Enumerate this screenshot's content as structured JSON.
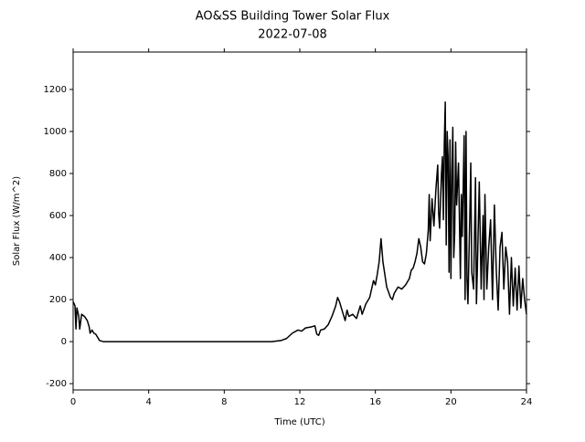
{
  "chart_data": {
    "type": "line",
    "title": "AO&SS Building Tower Solar Flux",
    "subtitle": "2022-07-08",
    "x_label": "Time (UTC)",
    "y_label": "Solar Flux (W/m^2)",
    "color": "#000000",
    "xlim": [
      0,
      24
    ],
    "xticks": [
      0,
      4,
      8,
      12,
      16,
      20,
      24
    ],
    "ylim": [
      -230,
      1378
    ],
    "yticks": [
      -200,
      0,
      200,
      400,
      600,
      800,
      1000,
      1200
    ],
    "x": [
      0,
      0.1,
      0.15,
      0.2,
      0.3,
      0.35,
      0.45,
      0.6,
      0.75,
      0.85,
      0.9,
      1.0,
      1.1,
      1.2,
      1.3,
      1.4,
      1.6,
      2,
      10.5,
      10.8,
      11,
      11.3,
      11.6,
      11.9,
      12.1,
      12.3,
      12.6,
      12.8,
      12.9,
      13,
      13.1,
      13.3,
      13.5,
      13.7,
      13.9,
      14.0,
      14.1,
      14.3,
      14.4,
      14.5,
      14.6,
      14.8,
      15,
      15.2,
      15.3,
      15.5,
      15.7,
      15.8,
      15.9,
      16.0,
      16.1,
      16.2,
      16.3,
      16.4,
      16.6,
      16.8,
      16.9,
      17.0,
      17.2,
      17.4,
      17.6,
      17.8,
      17.9,
      18.0,
      18.1,
      18.2,
      18.3,
      18.4,
      18.5,
      18.6,
      18.7,
      18.8,
      18.85,
      18.9,
      19.0,
      19.1,
      19.2,
      19.3,
      19.35,
      19.4,
      19.5,
      19.55,
      19.6,
      19.65,
      19.7,
      19.75,
      19.8,
      19.85,
      19.9,
      19.95,
      20.0,
      20.05,
      20.1,
      20.15,
      20.2,
      20.25,
      20.3,
      20.4,
      20.5,
      20.55,
      20.6,
      20.7,
      20.75,
      20.8,
      20.85,
      20.9,
      21.0,
      21.05,
      21.1,
      21.2,
      21.3,
      21.35,
      21.4,
      21.5,
      21.6,
      21.7,
      21.75,
      21.8,
      21.9,
      22.0,
      22.1,
      22.2,
      22.3,
      22.4,
      22.5,
      22.6,
      22.7,
      22.8,
      22.9,
      23.0,
      23.1,
      23.2,
      23.3,
      23.4,
      23.5,
      23.6,
      23.7,
      23.8,
      23.9,
      24
    ],
    "values": [
      190,
      170,
      60,
      160,
      120,
      60,
      130,
      120,
      100,
      70,
      40,
      55,
      40,
      35,
      20,
      5,
      0,
      0,
      0,
      3,
      5,
      15,
      40,
      55,
      50,
      65,
      70,
      75,
      35,
      30,
      55,
      60,
      80,
      120,
      170,
      210,
      190,
      130,
      100,
      150,
      120,
      130,
      110,
      170,
      130,
      180,
      210,
      250,
      290,
      270,
      320,
      380,
      490,
      380,
      260,
      210,
      200,
      230,
      260,
      250,
      270,
      300,
      340,
      350,
      380,
      420,
      490,
      450,
      380,
      370,
      420,
      530,
      700,
      480,
      680,
      550,
      720,
      840,
      610,
      540,
      800,
      880,
      580,
      950,
      1140,
      460,
      1000,
      880,
      330,
      960,
      300,
      800,
      1020,
      400,
      520,
      950,
      650,
      850,
      300,
      700,
      500,
      980,
      200,
      1000,
      300,
      180,
      600,
      850,
      330,
      250,
      780,
      180,
      350,
      760,
      250,
      600,
      200,
      700,
      250,
      450,
      580,
      200,
      650,
      340,
      150,
      450,
      520,
      250,
      450,
      380,
      130,
      400,
      170,
      350,
      150,
      360,
      160,
      300,
      200,
      130
    ]
  }
}
